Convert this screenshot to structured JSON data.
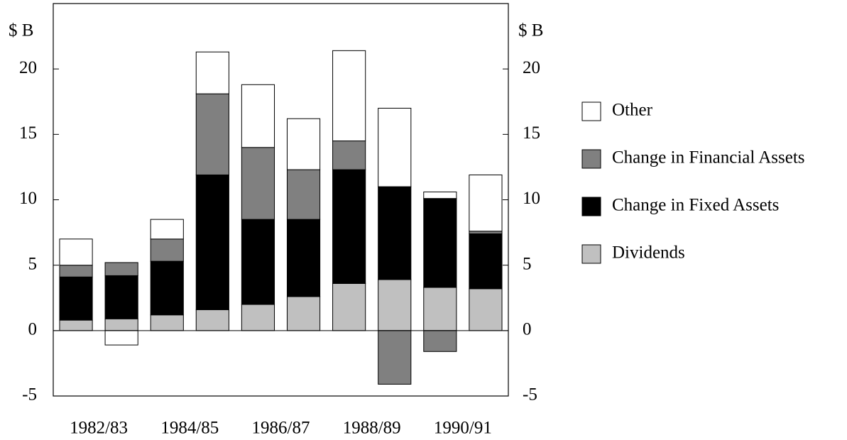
{
  "chart_data": {
    "type": "stacked_bar",
    "y_label": "$ B",
    "categories": [
      "1982/83",
      null,
      "1984/85",
      null,
      "1986/87",
      null,
      "1988/89",
      null,
      "1990/91",
      null
    ],
    "series": [
      {
        "name": "Dividends",
        "color": "#c0c0c0",
        "values": [
          0.8,
          0.9,
          1.2,
          1.6,
          2.0,
          2.6,
          3.6,
          3.9,
          3.3,
          3.2
        ]
      },
      {
        "name": "Change in Fixed Assets",
        "color": "#000000",
        "values": [
          3.3,
          3.3,
          4.1,
          10.3,
          6.5,
          5.9,
          8.7,
          7.1,
          6.8,
          4.2
        ]
      },
      {
        "name": "Change in Financial Assets",
        "color": "#808080",
        "values": [
          0.9,
          1.0,
          1.7,
          6.2,
          5.5,
          3.8,
          2.2,
          -4.1,
          -1.6,
          0.2
        ]
      },
      {
        "name": "Other",
        "color": "#ffffff",
        "values": [
          2.0,
          -1.1,
          1.5,
          3.2,
          4.8,
          3.9,
          6.9,
          6.0,
          0.5,
          4.3
        ]
      }
    ],
    "ylim": [
      -5,
      25
    ],
    "yticks": [
      -5,
      0,
      5,
      10,
      15,
      20
    ],
    "grid": false,
    "legend": "right"
  }
}
